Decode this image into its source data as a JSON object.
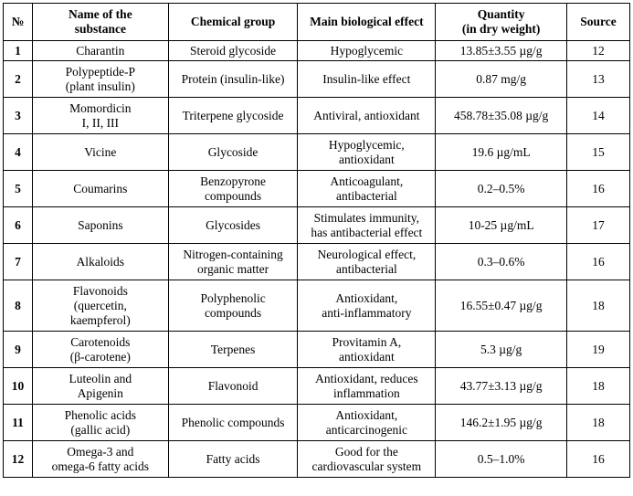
{
  "table": {
    "headers": [
      "№",
      "Name of the\nsubstance",
      "Chemical group",
      "Main biological effect",
      "Quantity\n(in dry weight)",
      "Source"
    ],
    "rows": [
      {
        "num": "1",
        "name": "Charantin",
        "group": "Steroid glycoside",
        "effect": "Hypoglycemic",
        "quantity": "13.85±3.55 µg/g",
        "source": "12"
      },
      {
        "num": "2",
        "name": "Polypeptide-P\n(plant insulin)",
        "group": "Protein (insulin-like)",
        "effect": "Insulin-like effect",
        "quantity": "0.87 mg/g",
        "source": "13"
      },
      {
        "num": "3",
        "name": "Momordicin\nI, II, III",
        "group": "Triterpene glycoside",
        "effect": "Antiviral, antioxidant",
        "quantity": "458.78±35.08 µg/g",
        "source": "14"
      },
      {
        "num": "4",
        "name": "Vicine",
        "group": "Glycoside",
        "effect": "Hypoglycemic,\nantioxidant",
        "quantity": "19.6 µg/mL",
        "source": "15"
      },
      {
        "num": "5",
        "name": "Coumarins",
        "group": "Benzopyrone\ncompounds",
        "effect": "Anticoagulant,\nantibacterial",
        "quantity": "0.2–0.5%",
        "source": "16"
      },
      {
        "num": "6",
        "name": "Saponins",
        "group": "Glycosides",
        "effect": "Stimulates immunity,\nhas antibacterial effect",
        "quantity": "10-25 µg/mL",
        "source": "17"
      },
      {
        "num": "7",
        "name": "Alkaloids",
        "group": "Nitrogen-containing\norganic matter",
        "effect": "Neurological effect,\nantibacterial",
        "quantity": "0.3–0.6%",
        "source": "16"
      },
      {
        "num": "8",
        "name": "Flavonoids\n(quercetin,\nkaempferol)",
        "group": "Polyphenolic\ncompounds",
        "effect": "Antioxidant,\nanti-inflammatory",
        "quantity": "16.55±0.47 µg/g",
        "source": "18"
      },
      {
        "num": "9",
        "name": "Carotenoids\n(β-carotene)",
        "group": "Terpenes",
        "effect": "Provitamin A,\nantioxidant",
        "quantity": "5.3 µg/g",
        "source": "19"
      },
      {
        "num": "10",
        "name": "Luteolin and\nApigenin",
        "group": "Flavonoid",
        "effect": "Antioxidant, reduces\ninflammation",
        "quantity": "43.77±3.13 µg/g",
        "source": "18"
      },
      {
        "num": "11",
        "name": "Phenolic acids\n(gallic acid)",
        "group": "Phenolic compounds",
        "effect": "Antioxidant,\nanticarcinogenic",
        "quantity": "146.2±1.95 µg/g",
        "source": "18"
      },
      {
        "num": "12",
        "name": "Omega-3 and\nomega-6 fatty acids",
        "group": "Fatty acids",
        "effect": "Good for the\ncardiovascular system",
        "quantity": "0.5–1.0%",
        "source": "16"
      }
    ]
  }
}
